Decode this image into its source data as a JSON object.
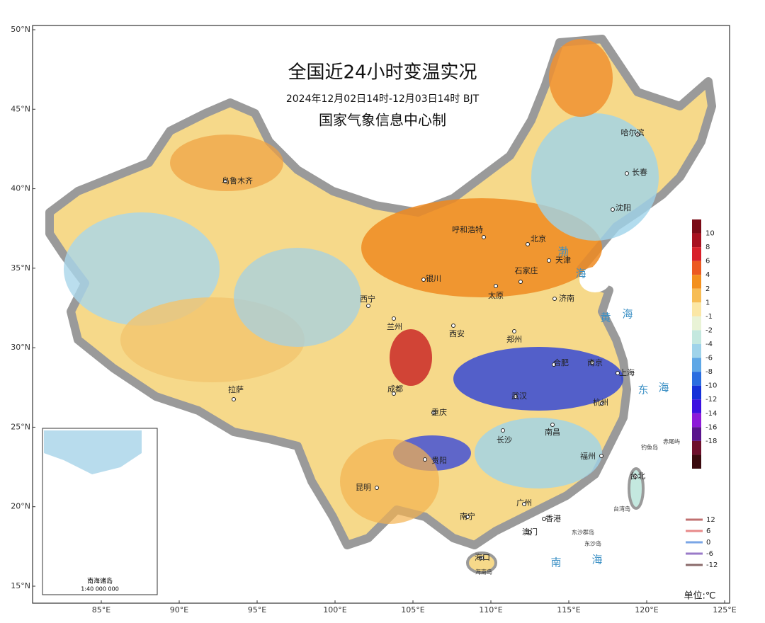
{
  "title": "全国近24小时变温实况",
  "subtitle": "2024年12月02日14时-12月03日14时  BJT",
  "producer": "国家气象信息中心制",
  "lat_ticks": [
    {
      "value": 50,
      "label": "50°N"
    },
    {
      "value": 45,
      "label": "45°N"
    },
    {
      "value": 40,
      "label": "40°N"
    },
    {
      "value": 35,
      "label": "35°N"
    },
    {
      "value": 30,
      "label": "30°N"
    },
    {
      "value": 25,
      "label": "25°N"
    },
    {
      "value": 20,
      "label": "20°N"
    },
    {
      "value": 15,
      "label": "15°N"
    }
  ],
  "lon_ticks": [
    {
      "value": 85,
      "label": "85°E"
    },
    {
      "value": 90,
      "label": "90°E"
    },
    {
      "value": 95,
      "label": "95°E"
    },
    {
      "value": 100,
      "label": "100°E"
    },
    {
      "value": 105,
      "label": "105°E"
    },
    {
      "value": 110,
      "label": "110°E"
    },
    {
      "value": 115,
      "label": "115°E"
    },
    {
      "value": 120,
      "label": "120°E"
    },
    {
      "value": 125,
      "label": "125°E"
    }
  ],
  "cities": [
    "乌鲁木齐",
    "呼和浩特",
    "北京",
    "天津",
    "沈阳",
    "长春",
    "哈尔滨",
    "石家庄",
    "太原",
    "银川",
    "济南",
    "西宁",
    "兰州",
    "西安",
    "郑州",
    "合肥",
    "南京",
    "上海",
    "武汉",
    "杭州",
    "成都",
    "重庆",
    "拉萨",
    "长沙",
    "南昌",
    "福州",
    "贵阳",
    "台北",
    "昆明",
    "南宁",
    "广州",
    "香港",
    "澳门",
    "海口"
  ],
  "islands": [
    "海南岛",
    "台湾岛",
    "钓鱼岛",
    "赤尾屿",
    "东沙群岛",
    "东沙岛"
  ],
  "seas": [
    "渤",
    "海",
    "黄",
    "海",
    "东",
    "海",
    "南",
    "海"
  ],
  "legend": {
    "levels": [
      10,
      8,
      6,
      4,
      2,
      1,
      -1,
      -2,
      -4,
      -6,
      -8,
      -10,
      -12,
      -14,
      -16,
      -18
    ],
    "colors": [
      "#7a0a16",
      "#a8101f",
      "#d8202a",
      "#ec5a22",
      "#f3901e",
      "#f7bd55",
      "#fbe7a5",
      "#e9f3d6",
      "#c4e8df",
      "#9fd3ea",
      "#5fa7e6",
      "#2a6de0",
      "#1530d8",
      "#3c10e0",
      "#8d1ad8",
      "#5a148c",
      "#6e0f2c",
      "#3a0a0e"
    ]
  },
  "contour_legend": {
    "values": [
      12,
      6,
      0,
      -6,
      -12
    ],
    "colors": [
      "#c07070",
      "#e88a8a",
      "#7aa6e6",
      "#9a7ac8",
      "#8a6a6a"
    ]
  },
  "unit": "单位:℃",
  "inset": {
    "title": "南海诸岛",
    "scale": "1:40 000 000"
  }
}
